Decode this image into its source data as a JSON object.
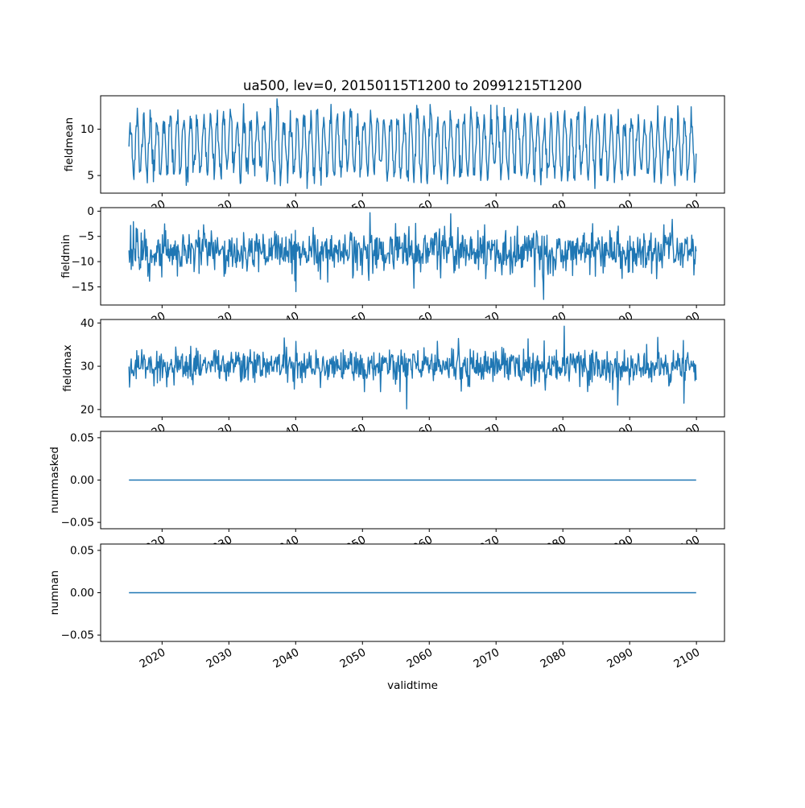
{
  "figure": {
    "title": "ua500, lev=0, 20150115T1200 to 20991215T1200",
    "background": "#ffffff"
  },
  "chart_data": {
    "type": "line",
    "title": "ua500, lev=0, 20150115T1200 to 20991215T1200",
    "xlabel": "validtime",
    "line_color": "#1f77b4",
    "x": {
      "start": 2015.0417,
      "end": 2099.9583,
      "samples_per_year": 12,
      "xlim": [
        2010.8,
        2104.2
      ],
      "ticks": [
        2020,
        2030,
        2040,
        2050,
        2060,
        2070,
        2080,
        2090,
        2100
      ],
      "tick_labels": [
        "2020",
        "2030",
        "2040",
        "2050",
        "2060",
        "2070",
        "2080",
        "2090",
        "2100"
      ]
    },
    "subplots": [
      {
        "ylabel": "fieldmean",
        "ylim": [
          3.1,
          13.6
        ],
        "yticks": [
          {
            "v": 5,
            "label": "5"
          },
          {
            "v": 10,
            "label": "10"
          }
        ],
        "series": {
          "kind": "seasonal",
          "base": 8.2,
          "amplitude": 3.0,
          "noise_sd": 0.75,
          "seed": 11,
          "observed_range": [
            3.6,
            13.4
          ],
          "description": "annual oscillation between about 5 and 12"
        }
      },
      {
        "ylabel": "fieldmin",
        "ylim": [
          -18.6,
          0.7
        ],
        "yticks": [
          {
            "v": 0,
            "label": "0"
          },
          {
            "v": -5,
            "label": "−5"
          },
          {
            "v": -10,
            "label": "−10"
          },
          {
            "v": -15,
            "label": "−15"
          }
        ],
        "series": {
          "kind": "noisy",
          "base": -8.1,
          "amplitude": 0.6,
          "noise_sd": 2.1,
          "seed": 22,
          "spike_p": 0.012,
          "spike_down": -4,
          "spike_up": 3,
          "observed_range": [
            -17.5,
            -0.3
          ],
          "description": "noise around -8 with spikes down to about -17 and up to 0"
        }
      },
      {
        "ylabel": "fieldmax",
        "ylim": [
          18.3,
          40.8
        ],
        "yticks": [
          {
            "v": 20,
            "label": "20"
          },
          {
            "v": 30,
            "label": "30"
          },
          {
            "v": 40,
            "label": "40"
          }
        ],
        "series": {
          "kind": "noisy",
          "base": 29.9,
          "amplitude": 0.6,
          "noise_sd": 1.9,
          "seed": 33,
          "spike_p": 0.012,
          "spike_down": -5,
          "spike_up": 4.5,
          "observed_range": [
            19.2,
            39.8
          ],
          "description": "noise around 30 with spikes up to about 40 and down to 19"
        }
      },
      {
        "ylabel": "nummasked",
        "ylim": [
          -0.0575,
          0.0575
        ],
        "yticks": [
          {
            "v": 0.05,
            "label": "0.05"
          },
          {
            "v": 0,
            "label": "0.00"
          },
          {
            "v": -0.05,
            "label": "−0.05"
          }
        ],
        "series": {
          "kind": "constant",
          "value": 0,
          "description": "flat line at exactly 0"
        }
      },
      {
        "ylabel": "numnan",
        "ylim": [
          -0.0575,
          0.0575
        ],
        "yticks": [
          {
            "v": 0.05,
            "label": "0.05"
          },
          {
            "v": 0,
            "label": "0.00"
          },
          {
            "v": -0.05,
            "label": "−0.05"
          }
        ],
        "series": {
          "kind": "constant",
          "value": 0,
          "description": "flat line at exactly 0"
        }
      }
    ]
  }
}
